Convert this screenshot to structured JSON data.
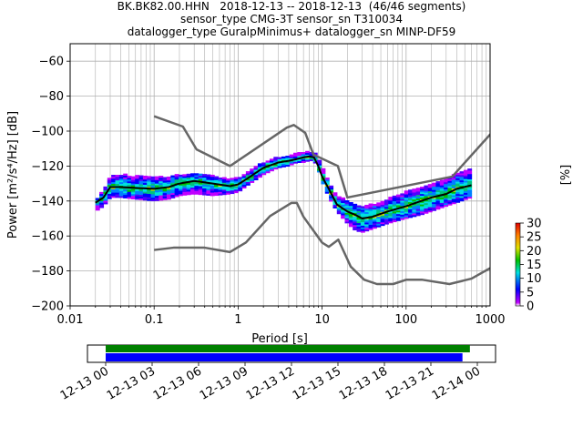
{
  "title_lines": [
    "BK.BK82.00.HHN   2018-12-13 -- 2018-12-13  (46/46 segments)",
    "sensor_type CMG-3T sensor_sn T310034",
    "datalogger_type GuralpMinimus+ datalogger_sn MINP-DF59"
  ],
  "chart_data": {
    "type": "heatmap",
    "xlabel": "Period [s]",
    "ylabel": "Power [m²/s⁴/Hz] [dB]",
    "xscale": "log",
    "xlim": [
      0.01,
      1000
    ],
    "ylim": [
      -200,
      -50
    ],
    "grid": true,
    "x_ticks": [
      0.01,
      0.1,
      1,
      10,
      100,
      1000
    ],
    "x_tick_labels": [
      "0.01",
      "0.1",
      "1",
      "10",
      "100",
      "1000"
    ],
    "y_ticks": [
      -200,
      -180,
      -160,
      -140,
      -120,
      -100,
      -80,
      -60
    ],
    "y_tick_labels": [
      "−200",
      "−180",
      "−160",
      "−140",
      "−120",
      "−100",
      "−80",
      "−60"
    ],
    "colorbar": {
      "label": "[%]",
      "ticks": [
        0,
        5,
        10,
        15,
        20,
        25,
        30
      ],
      "tick_labels": [
        "0",
        "5",
        "10",
        "15",
        "20",
        "25",
        "30"
      ],
      "range": [
        0,
        30
      ]
    },
    "series": [
      {
        "key": "nhnm",
        "color": "#666666",
        "x": [
          0.1,
          0.22,
          0.32,
          0.8,
          3.8,
          4.6,
          6.3,
          7.9,
          15.4,
          20,
          354.8,
          10000
        ],
        "y": [
          -91.5,
          -97.4,
          -110.5,
          -120,
          -98,
          -96.5,
          -101,
          -113.5,
          -120,
          -138,
          -126,
          -48.5
        ]
      },
      {
        "key": "nlnm",
        "color": "#666666",
        "x": [
          0.1,
          0.17,
          0.4,
          0.8,
          1.24,
          2.4,
          4.3,
          5,
          6,
          10,
          12,
          15.6,
          21.9,
          31.6,
          45,
          70,
          101,
          154,
          328,
          600,
          10000
        ],
        "y": [
          -168,
          -166.7,
          -166.7,
          -169.2,
          -163.7,
          -148.6,
          -141.1,
          -141.1,
          -149,
          -163.8,
          -166.2,
          -162.1,
          -177.5,
          -185,
          -187.5,
          -187.5,
          -185,
          -185,
          -187.5,
          -184.4,
          -151.5
        ]
      },
      {
        "key": "mode",
        "color": "#000000",
        "x": [
          0.02,
          0.025,
          0.03,
          0.04,
          0.06,
          0.1,
          0.15,
          0.2,
          0.3,
          0.5,
          0.8,
          1,
          1.3,
          2,
          3,
          4,
          5,
          6,
          7,
          8,
          9,
          10,
          12,
          15,
          20,
          25,
          30,
          40,
          60,
          100,
          150,
          200,
          300,
          400,
          600
        ],
        "y": [
          -141,
          -138,
          -132,
          -132,
          -132.5,
          -133,
          -132,
          -130,
          -128.5,
          -130,
          -131.5,
          -130.5,
          -127,
          -121,
          -118,
          -117,
          -116,
          -115,
          -114.5,
          -115,
          -120,
          -126,
          -133,
          -142,
          -146,
          -148,
          -150,
          -149,
          -146,
          -143,
          -140,
          -138,
          -136,
          -133,
          -131
        ]
      }
    ],
    "histogram_band": {
      "x": [
        0.02,
        0.025,
        0.03,
        0.04,
        0.06,
        0.1,
        0.15,
        0.2,
        0.3,
        0.5,
        0.8,
        1,
        1.3,
        2,
        3,
        4,
        5,
        6,
        7,
        8,
        9,
        10,
        12,
        15,
        20,
        25,
        30,
        40,
        60,
        100,
        150,
        200,
        300,
        400,
        600
      ],
      "upper": [
        -140,
        -134,
        -126,
        -125,
        -126,
        -126.5,
        -126.5,
        -125,
        -124.5,
        -126,
        -127.5,
        -127,
        -123,
        -118,
        -115,
        -114,
        -113,
        -112,
        -112,
        -112,
        -116,
        -121,
        -129,
        -137,
        -140,
        -142,
        -143,
        -142,
        -139,
        -135,
        -132,
        -130,
        -128,
        -124,
        -122
      ],
      "lower": [
        -146,
        -143,
        -138,
        -138,
        -139,
        -140,
        -139,
        -137,
        -136,
        -137,
        -136,
        -135,
        -131,
        -125,
        -121,
        -120,
        -118,
        -118,
        -117,
        -117,
        -122,
        -129,
        -138,
        -146,
        -153,
        -157,
        -158,
        -156,
        -153,
        -150,
        -148,
        -146,
        -143,
        -141,
        -138
      ]
    },
    "time_axis": {
      "tick_labels": [
        "12-13 00",
        "12-13 03",
        "12-13 06",
        "12-13 09",
        "12-13 12",
        "12-13 15",
        "12-13 18",
        "12-13 21",
        "12-14 00"
      ],
      "data_coverage": [
        0,
        0.98
      ],
      "psd_coverage": [
        0,
        0.96
      ],
      "data_color": "#008000",
      "psd_color": "#0000ff"
    }
  }
}
